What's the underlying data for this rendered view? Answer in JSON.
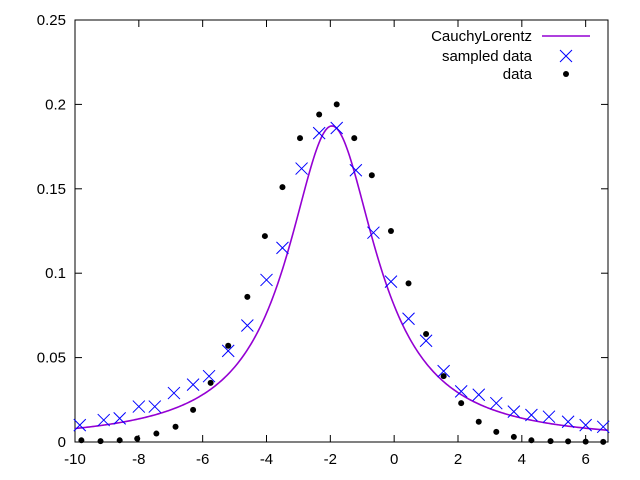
{
  "chart_data": {
    "type": "scatter",
    "xlim": [
      -10,
      6.7
    ],
    "ylim": [
      0,
      0.25
    ],
    "grid": false,
    "legend_position": "top-right",
    "x_ticks": [
      -10,
      -8,
      -6,
      -4,
      -2,
      0,
      2,
      4,
      6
    ],
    "x_tick_labels": [
      "-10",
      "-8",
      "-6",
      "-4",
      "-2",
      "0",
      "2",
      "4",
      "6"
    ],
    "y_ticks": [
      0,
      0.05,
      0.1,
      0.15,
      0.2,
      0.25
    ],
    "y_tick_labels": [
      "0",
      "0.05",
      "0.1",
      "0.15",
      "0.2",
      "0.25"
    ],
    "series": [
      {
        "name": "CauchyLorentz",
        "kind": "line",
        "color": "#9400d3",
        "function": "cauchy_lorentz",
        "params": {
          "x0": -1.95,
          "gamma": 1.7
        },
        "x_range": [
          -10,
          6.7
        ]
      },
      {
        "name": "sampled data",
        "kind": "cross",
        "color": "#0000ff",
        "x": [
          -9.85,
          -9.1,
          -8.6,
          -8.0,
          -7.5,
          -6.9,
          -6.3,
          -5.8,
          -5.2,
          -4.6,
          -4.0,
          -3.5,
          -2.9,
          -2.35,
          -1.8,
          -1.2,
          -0.65,
          -0.1,
          0.45,
          1.0,
          1.55,
          2.1,
          2.65,
          3.2,
          3.75,
          4.3,
          4.85,
          5.45,
          6.0,
          6.55
        ],
        "y": [
          0.01,
          0.013,
          0.014,
          0.021,
          0.021,
          0.029,
          0.034,
          0.039,
          0.054,
          0.069,
          0.096,
          0.115,
          0.162,
          0.183,
          0.186,
          0.161,
          0.124,
          0.095,
          0.073,
          0.06,
          0.042,
          0.03,
          0.028,
          0.023,
          0.018,
          0.016,
          0.015,
          0.012,
          0.01,
          0.009
        ]
      },
      {
        "name": "data",
        "kind": "dot",
        "color": "#000000",
        "x": [
          -9.8,
          -9.2,
          -8.6,
          -8.05,
          -7.45,
          -6.85,
          -6.3,
          -5.75,
          -5.2,
          -4.6,
          -4.05,
          -3.5,
          -2.95,
          -2.35,
          -1.8,
          -1.25,
          -0.7,
          -0.1,
          0.45,
          1.0,
          1.55,
          2.1,
          2.65,
          3.2,
          3.75,
          4.3,
          4.9,
          5.45,
          6.0,
          6.55
        ],
        "y": [
          0.001,
          0.0005,
          0.001,
          0.002,
          0.005,
          0.009,
          0.019,
          0.035,
          0.057,
          0.086,
          0.122,
          0.151,
          0.18,
          0.194,
          0.2,
          0.18,
          0.158,
          0.125,
          0.094,
          0.064,
          0.039,
          0.023,
          0.012,
          0.006,
          0.003,
          0.001,
          0.0005,
          0.0004,
          0.0002,
          0.0001
        ]
      }
    ]
  }
}
